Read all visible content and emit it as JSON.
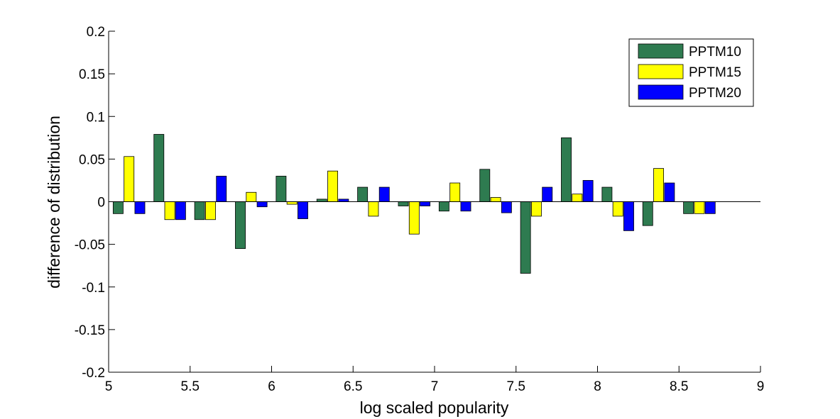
{
  "chart_data": {
    "type": "bar",
    "xlabel": "log scaled popularity",
    "ylabel": "difference of distribution",
    "xlim": [
      5,
      9
    ],
    "ylim": [
      -0.2,
      0.2
    ],
    "x_ticks": [
      "5",
      "5.5",
      "6",
      "6.5",
      "7",
      "7.5",
      "8",
      "8.5",
      "9"
    ],
    "y_ticks": [
      "-0.2",
      "-0.15",
      "-0.1",
      "-0.05",
      "0",
      "0.05",
      "0.1",
      "0.15",
      "0.2"
    ],
    "x_tick_values": [
      5,
      5.5,
      6,
      6.5,
      7,
      7.5,
      8,
      8.5,
      9
    ],
    "y_tick_values": [
      -0.2,
      -0.15,
      -0.1,
      -0.05,
      0,
      0.05,
      0.1,
      0.15,
      0.2
    ],
    "bin_width": 0.25,
    "x": [
      5.125,
      5.375,
      5.625,
      5.875,
      6.125,
      6.375,
      6.625,
      6.875,
      7.125,
      7.375,
      7.625,
      7.875,
      8.125,
      8.375,
      8.625
    ],
    "series": [
      {
        "name": "PPTM10",
        "color": "#2e7b50",
        "values": [
          -0.014,
          0.079,
          -0.021,
          -0.055,
          0.03,
          0.003,
          0.017,
          -0.005,
          -0.011,
          0.038,
          -0.084,
          0.075,
          0.017,
          -0.028,
          -0.014
        ]
      },
      {
        "name": "PPTM15",
        "color": "#ffff00",
        "values": [
          0.053,
          -0.021,
          -0.021,
          0.011,
          -0.003,
          0.036,
          -0.017,
          -0.038,
          0.022,
          0.005,
          -0.017,
          0.009,
          -0.017,
          0.039,
          -0.014
        ]
      },
      {
        "name": "PPTM20",
        "color": "#0000ff",
        "values": [
          -0.014,
          -0.021,
          0.03,
          -0.006,
          -0.02,
          0.003,
          0.017,
          -0.005,
          -0.011,
          -0.013,
          0.017,
          0.025,
          -0.034,
          0.022,
          -0.014
        ]
      }
    ],
    "grid": false,
    "legend_position": "top-right"
  }
}
